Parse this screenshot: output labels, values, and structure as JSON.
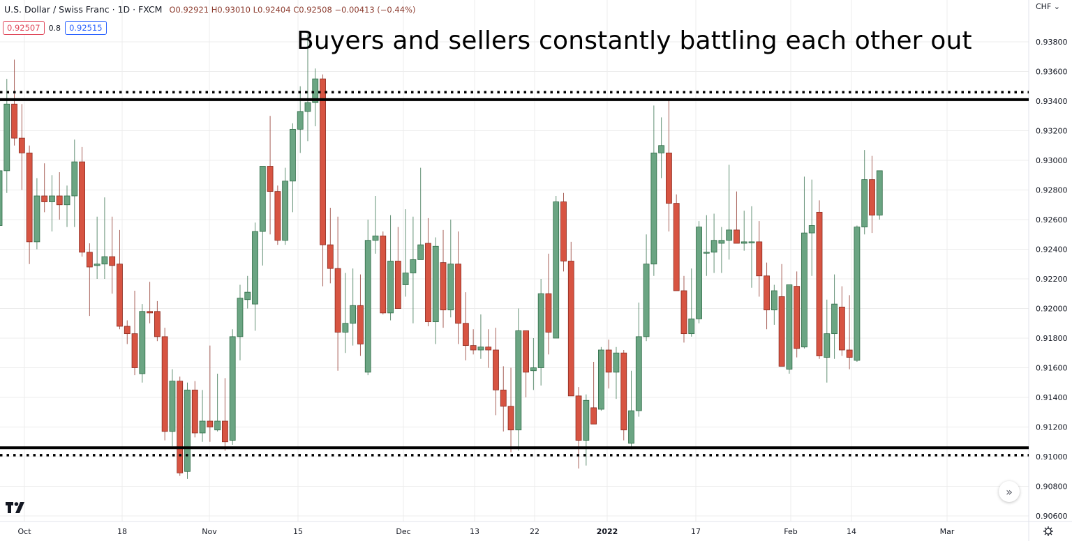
{
  "header": {
    "symbol_title": "U.S. Dollar / Swiss Franc · 1D · FXCM",
    "ohlc": "O0.92921 H0.93010 L0.92404 C0.92508 −0.00413 (−0.44%)",
    "bid": "0.92507",
    "spread": "0.8",
    "ask": "0.92515"
  },
  "annotation": "Buyers and sellers constantly battling each other out",
  "currency_label": "CHF ⌄",
  "scroll_button": "»",
  "settings_icon": "⚙",
  "colors": {
    "up": "#6ba583",
    "up_border": "#2e6b46",
    "down": "#d75442",
    "down_border": "#8a2a1f",
    "grid": "#ececec",
    "line": "#000000"
  },
  "chart_data": {
    "type": "candlestick",
    "title": "U.S. Dollar / Swiss Franc · 1D · FXCM",
    "annotation": "Buyers and sellers constantly battling each other out",
    "ylabel": "CHF",
    "ylim": [
      0.9055,
      0.9395
    ],
    "y_ticks": [
      "0.93800",
      "0.93600",
      "0.93400",
      "0.93200",
      "0.93000",
      "0.92800",
      "0.92600",
      "0.92400",
      "0.92200",
      "0.92000",
      "0.91800",
      "0.91600",
      "0.91400",
      "0.91200",
      "0.91000",
      "0.90800",
      "0.90600"
    ],
    "x_ticks": [
      {
        "label": "Oct",
        "x": 35
      },
      {
        "label": "18",
        "x": 175
      },
      {
        "label": "Nov",
        "x": 300
      },
      {
        "label": "15",
        "x": 427
      },
      {
        "label": "Dec",
        "x": 578
      },
      {
        "label": "13",
        "x": 680
      },
      {
        "label": "22",
        "x": 766
      },
      {
        "label": "2022",
        "x": 870,
        "bold": true
      },
      {
        "label": "17",
        "x": 997
      },
      {
        "label": "Feb",
        "x": 1133
      },
      {
        "label": "14",
        "x": 1220
      },
      {
        "label": "Mar",
        "x": 1357
      }
    ],
    "levels": [
      {
        "name": "resistance-solid",
        "price": 0.9341,
        "style": "solid"
      },
      {
        "name": "resistance-dotted",
        "price": 0.9346,
        "style": "dotted"
      },
      {
        "name": "support-solid",
        "price": 0.9106,
        "style": "solid"
      },
      {
        "name": "support-dotted",
        "price": 0.9101,
        "style": "dotted"
      }
    ],
    "grid": true,
    "candles": [
      [
        0.9256,
        0.9293,
        0.9256,
        0.9293
      ],
      [
        0.9293,
        0.9355,
        0.9278,
        0.9338
      ],
      [
        0.9338,
        0.9368,
        0.931,
        0.9315
      ],
      [
        0.9315,
        0.9338,
        0.928,
        0.9305
      ],
      [
        0.9305,
        0.931,
        0.923,
        0.9245
      ],
      [
        0.9245,
        0.9288,
        0.924,
        0.9276
      ],
      [
        0.9276,
        0.9298,
        0.9265,
        0.9272
      ],
      [
        0.9272,
        0.929,
        0.9252,
        0.9276
      ],
      [
        0.9276,
        0.9292,
        0.926,
        0.927
      ],
      [
        0.927,
        0.9283,
        0.9255,
        0.9276
      ],
      [
        0.9276,
        0.9314,
        0.9255,
        0.9299
      ],
      [
        0.9299,
        0.9309,
        0.9235,
        0.9238
      ],
      [
        0.9238,
        0.9244,
        0.9195,
        0.9228
      ],
      [
        0.9229,
        0.9262,
        0.922,
        0.923
      ],
      [
        0.923,
        0.9275,
        0.922,
        0.9235
      ],
      [
        0.9235,
        0.9262,
        0.921,
        0.9229
      ],
      [
        0.923,
        0.9253,
        0.9186,
        0.9188
      ],
      [
        0.9188,
        0.9192,
        0.9176,
        0.9183
      ],
      [
        0.9183,
        0.9212,
        0.9155,
        0.916
      ],
      [
        0.9156,
        0.9203,
        0.915,
        0.9198
      ],
      [
        0.9198,
        0.9218,
        0.919,
        0.9197
      ],
      [
        0.9198,
        0.9205,
        0.9178,
        0.9181
      ],
      [
        0.9181,
        0.9187,
        0.9111,
        0.9117
      ],
      [
        0.9117,
        0.9159,
        0.9107,
        0.9151
      ],
      [
        0.9151,
        0.9154,
        0.9087,
        0.9089
      ],
      [
        0.909,
        0.915,
        0.9085,
        0.9145
      ],
      [
        0.9145,
        0.9151,
        0.9113,
        0.9116
      ],
      [
        0.9116,
        0.9145,
        0.911,
        0.9124
      ],
      [
        0.9124,
        0.9175,
        0.911,
        0.912
      ],
      [
        0.9118,
        0.9156,
        0.9117,
        0.9124
      ],
      [
        0.9124,
        0.9153,
        0.9104,
        0.911
      ],
      [
        0.9111,
        0.9186,
        0.9108,
        0.9181
      ],
      [
        0.9181,
        0.9216,
        0.9165,
        0.9207
      ],
      [
        0.9206,
        0.9222,
        0.92,
        0.9211
      ],
      [
        0.9203,
        0.9258,
        0.9185,
        0.9252
      ],
      [
        0.9252,
        0.9292,
        0.9229,
        0.9296
      ],
      [
        0.9296,
        0.933,
        0.925,
        0.9279
      ],
      [
        0.9279,
        0.9283,
        0.9243,
        0.9246
      ],
      [
        0.9246,
        0.9295,
        0.9243,
        0.9286
      ],
      [
        0.9286,
        0.9325,
        0.9265,
        0.9321
      ],
      [
        0.9321,
        0.935,
        0.9305,
        0.9333
      ],
      [
        0.9333,
        0.9385,
        0.9313,
        0.9339
      ],
      [
        0.9339,
        0.9362,
        0.9323,
        0.9355
      ],
      [
        0.9355,
        0.9358,
        0.9215,
        0.9243
      ],
      [
        0.9243,
        0.9268,
        0.9217,
        0.9227
      ],
      [
        0.9227,
        0.9262,
        0.9158,
        0.9184
      ],
      [
        0.9184,
        0.9224,
        0.917,
        0.919
      ],
      [
        0.919,
        0.9227,
        0.9175,
        0.9202
      ],
      [
        0.9202,
        0.9223,
        0.9168,
        0.9176
      ],
      [
        0.9157,
        0.926,
        0.9155,
        0.9246
      ],
      [
        0.9246,
        0.9276,
        0.9237,
        0.9249
      ],
      [
        0.9249,
        0.9252,
        0.9196,
        0.9197
      ],
      [
        0.9197,
        0.9263,
        0.9192,
        0.9232
      ],
      [
        0.9232,
        0.9255,
        0.92,
        0.92
      ],
      [
        0.9216,
        0.9267,
        0.9208,
        0.9224
      ],
      [
        0.9224,
        0.9262,
        0.919,
        0.9233
      ],
      [
        0.9233,
        0.9295,
        0.9237,
        0.9243
      ],
      [
        0.9244,
        0.9261,
        0.9188,
        0.9191
      ],
      [
        0.9191,
        0.9248,
        0.9176,
        0.9242
      ],
      [
        0.9231,
        0.9253,
        0.9187,
        0.9199
      ],
      [
        0.9199,
        0.926,
        0.9194,
        0.923
      ],
      [
        0.923,
        0.9252,
        0.9176,
        0.919
      ],
      [
        0.919,
        0.9211,
        0.9165,
        0.9175
      ],
      [
        0.9175,
        0.9186,
        0.9169,
        0.9172
      ],
      [
        0.9172,
        0.9196,
        0.9166,
        0.9174
      ],
      [
        0.9174,
        0.9186,
        0.916,
        0.9172
      ],
      [
        0.9172,
        0.9187,
        0.9128,
        0.9145
      ],
      [
        0.9145,
        0.9161,
        0.9117,
        0.9134
      ],
      [
        0.9134,
        0.916,
        0.9103,
        0.9118
      ],
      [
        0.9118,
        0.92,
        0.9104,
        0.9185
      ],
      [
        0.9185,
        0.918,
        0.914,
        0.9157
      ],
      [
        0.9158,
        0.918,
        0.9145,
        0.916
      ],
      [
        0.916,
        0.922,
        0.9148,
        0.921
      ],
      [
        0.921,
        0.9237,
        0.9169,
        0.9184
      ],
      [
        0.918,
        0.9276,
        0.9181,
        0.9272
      ],
      [
        0.9272,
        0.9278,
        0.9225,
        0.9232
      ],
      [
        0.9232,
        0.9245,
        0.9161,
        0.9141
      ],
      [
        0.9141,
        0.9147,
        0.9092,
        0.9111
      ],
      [
        0.9111,
        0.9142,
        0.9094,
        0.9138
      ],
      [
        0.9133,
        0.9164,
        0.9123,
        0.9122
      ],
      [
        0.9132,
        0.9174,
        0.9131,
        0.9172
      ],
      [
        0.9172,
        0.9179,
        0.9146,
        0.9157
      ],
      [
        0.9157,
        0.9174,
        0.9139,
        0.917
      ],
      [
        0.917,
        0.9172,
        0.9111,
        0.9118
      ],
      [
        0.9109,
        0.9158,
        0.9105,
        0.9131
      ],
      [
        0.9131,
        0.9204,
        0.9127,
        0.9181
      ],
      [
        0.9181,
        0.925,
        0.9178,
        0.923
      ],
      [
        0.923,
        0.9337,
        0.9222,
        0.9305
      ],
      [
        0.9305,
        0.9329,
        0.9288,
        0.931
      ],
      [
        0.9305,
        0.9341,
        0.9252,
        0.9271
      ],
      [
        0.9271,
        0.9277,
        0.9212,
        0.9212
      ],
      [
        0.9212,
        0.9222,
        0.9177,
        0.9183
      ],
      [
        0.9183,
        0.9227,
        0.9181,
        0.9193
      ],
      [
        0.9193,
        0.9259,
        0.919,
        0.9255
      ],
      [
        0.9238,
        0.9263,
        0.9222,
        0.9238
      ],
      [
        0.9238,
        0.9264,
        0.9224,
        0.9246
      ],
      [
        0.9244,
        0.9255,
        0.9224,
        0.9246
      ],
      [
        0.9246,
        0.9297,
        0.9233,
        0.9253
      ],
      [
        0.9253,
        0.9279,
        0.9246,
        0.9244
      ],
      [
        0.9244,
        0.9266,
        0.9239,
        0.9245
      ],
      [
        0.9245,
        0.9269,
        0.9214,
        0.9245
      ],
      [
        0.9245,
        0.9259,
        0.9208,
        0.9222
      ],
      [
        0.9222,
        0.9231,
        0.9186,
        0.9199
      ],
      [
        0.9199,
        0.9216,
        0.9189,
        0.9212
      ],
      [
        0.9208,
        0.923,
        0.9178,
        0.9161
      ],
      [
        0.9159,
        0.9216,
        0.9156,
        0.9216
      ],
      [
        0.9215,
        0.9225,
        0.9167,
        0.9173
      ],
      [
        0.9174,
        0.9289,
        0.9173,
        0.9251
      ],
      [
        0.9251,
        0.9287,
        0.9222,
        0.9256
      ],
      [
        0.9265,
        0.9273,
        0.9166,
        0.9168
      ],
      [
        0.9167,
        0.9206,
        0.915,
        0.9183
      ],
      [
        0.9183,
        0.9223,
        0.9166,
        0.9203
      ],
      [
        0.9201,
        0.9215,
        0.9168,
        0.9172
      ],
      [
        0.9172,
        0.9209,
        0.9159,
        0.9167
      ],
      [
        0.9165,
        0.9256,
        0.9164,
        0.9255
      ],
      [
        0.9255,
        0.9307,
        0.925,
        0.9287
      ],
      [
        0.9287,
        0.9303,
        0.9251,
        0.9263
      ],
      [
        0.9263,
        0.9293,
        0.926,
        0.9293
      ]
    ]
  }
}
